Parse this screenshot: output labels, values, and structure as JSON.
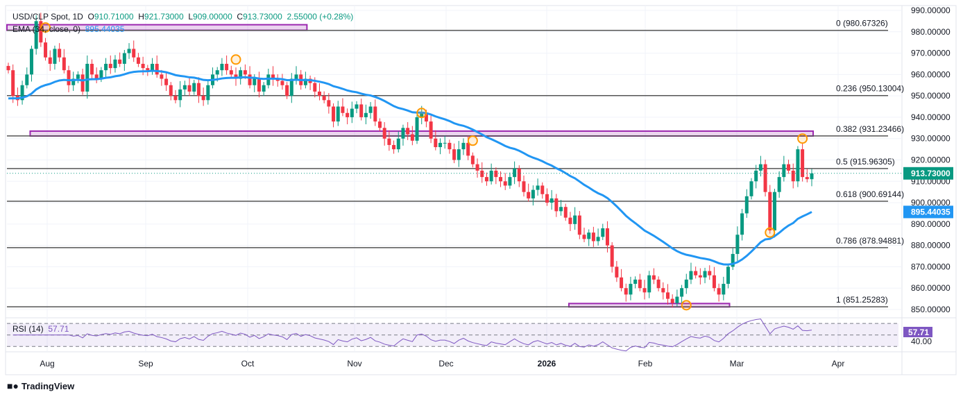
{
  "header": {
    "symbol": "USD/CLP Spot, 1D",
    "open_label": "O",
    "open": "910.71000",
    "high_label": "H",
    "high": "921.73000",
    "low_label": "L",
    "low": "909.00000",
    "close_label": "C",
    "close": "913.73000",
    "change": "2.55000 (+0.28%)"
  },
  "ema_legend": {
    "label": "EMA (34, close, 0)",
    "value": "895.44035"
  },
  "rsi_legend": {
    "label": "RSI (14)",
    "value": "57.71"
  },
  "price_labels": {
    "current": "913.73000",
    "ema": "895.44035",
    "rsi": "57.71",
    "rsi_level": "40.00"
  },
  "logo": "TradingView",
  "colors": {
    "up": "#089981",
    "down": "#f23645",
    "ema": "#2196f3",
    "rsi": "#7e57c2",
    "zone": "#9c27b0",
    "marker": "#ff9800"
  },
  "chart_data": {
    "type": "candlestick",
    "y_ticks": [
      "990.00000",
      "980.00000",
      "970.00000",
      "960.00000",
      "950.00000",
      "940.00000",
      "930.00000",
      "920.00000",
      "910.00000",
      "900.00000",
      "890.00000",
      "880.00000",
      "870.00000",
      "860.00000",
      "850.00000"
    ],
    "ylim": [
      850,
      990
    ],
    "x_ticks": [
      "Aug",
      "Sep",
      "Oct",
      "Nov",
      "Dec",
      "2026",
      "Feb",
      "Mar",
      "Apr"
    ],
    "fib_levels": [
      {
        "label": "0 (980.67326)",
        "value": 980.67326
      },
      {
        "label": "0.236 (950.13004)",
        "value": 950.13004
      },
      {
        "label": "0.382 (931.23466)",
        "value": 931.23466
      },
      {
        "label": "0.5 (915.96305)",
        "value": 915.96305
      },
      {
        "label": "0.618 (900.69144)",
        "value": 900.69144
      },
      {
        "label": "0.786 (878.94881)",
        "value": 878.94881
      },
      {
        "label": "1 (851.25283)",
        "value": 851.25283
      }
    ],
    "zones": [
      {
        "from_index": 0,
        "to_index": 64,
        "low": 980.7,
        "high": 983.3
      },
      {
        "from_index": 5,
        "to_index": 173,
        "low": 931.2,
        "high": 933.5
      },
      {
        "from_index": 121,
        "to_index": 155,
        "low": 851.2,
        "high": 852.8
      }
    ],
    "markers": [
      {
        "index": 8,
        "value": 982
      },
      {
        "index": 49,
        "value": 967
      },
      {
        "index": 89,
        "value": 942
      },
      {
        "index": 100,
        "value": 929
      },
      {
        "index": 146,
        "value": 852
      },
      {
        "index": 164,
        "value": 886
      },
      {
        "index": 171,
        "value": 930
      }
    ],
    "ema_period": 34,
    "closes": [
      962,
      950,
      948,
      955,
      960,
      972,
      985,
      975,
      968,
      965,
      972,
      968,
      962,
      955,
      958,
      960,
      952,
      965,
      960,
      958,
      962,
      965,
      963,
      967,
      965,
      970,
      972,
      968,
      965,
      963,
      962,
      965,
      960,
      958,
      955,
      950,
      948,
      953,
      955,
      952,
      956,
      950,
      948,
      955,
      960,
      962,
      965,
      962,
      960,
      958,
      962,
      960,
      955,
      958,
      952,
      955,
      960,
      958,
      957,
      955,
      950,
      958,
      960,
      955,
      958,
      956,
      952,
      950,
      948,
      945,
      938,
      945,
      942,
      940,
      944,
      946,
      940,
      942,
      945,
      938,
      935,
      930,
      927,
      925,
      930,
      935,
      932,
      929,
      940,
      942,
      938,
      930,
      926,
      928,
      928,
      925,
      920,
      925,
      928,
      922,
      918,
      915,
      912,
      910,
      915,
      912,
      910,
      908,
      912,
      916,
      910,
      905,
      902,
      906,
      908,
      904,
      900,
      902,
      896,
      898,
      893,
      890,
      894,
      885,
      883,
      886,
      882,
      884,
      888,
      880,
      870,
      865,
      860,
      857,
      862,
      864,
      860,
      858,
      866,
      864,
      860,
      858,
      855,
      853,
      856,
      860,
      864,
      868,
      866,
      865,
      868,
      866,
      860,
      857,
      862,
      870,
      876,
      885,
      895,
      903,
      910,
      915,
      918,
      905,
      887,
      905,
      912,
      918,
      915,
      910,
      925,
      912,
      911,
      913.73
    ],
    "rsi_levels": [
      70,
      50,
      30
    ]
  }
}
